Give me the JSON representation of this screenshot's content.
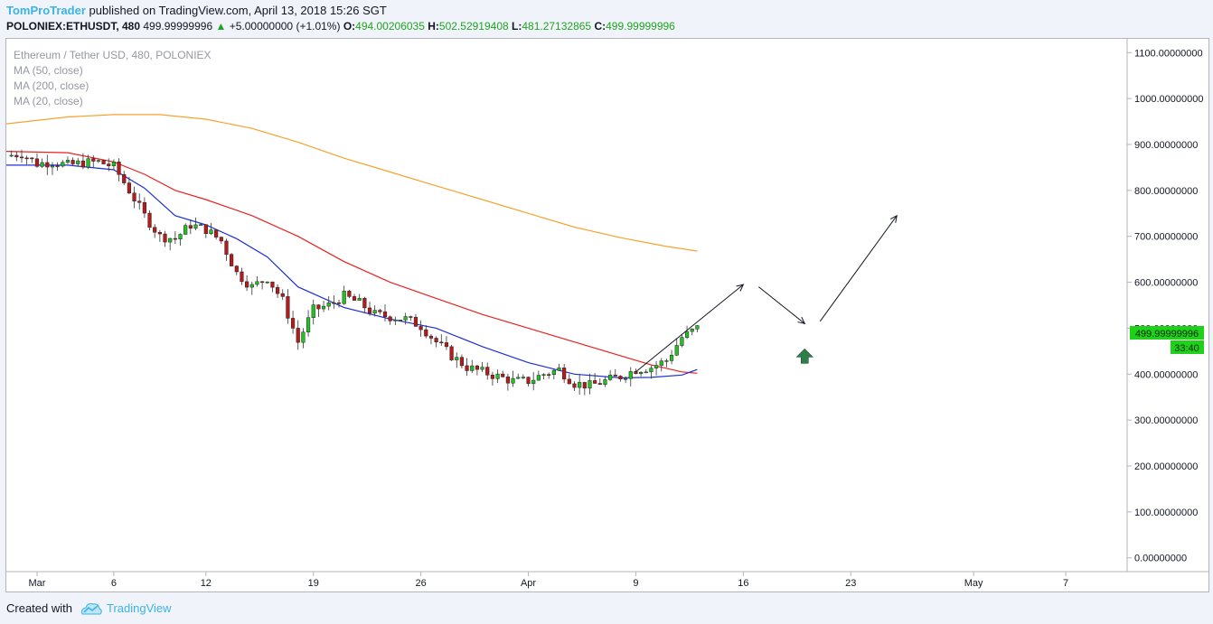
{
  "header": {
    "author": "TomProTrader",
    "published_text": "published on TradingView.com, April 13, 2018 15:26 SGT",
    "symbol": "POLONIEX:ETHUSDT, 480",
    "last_value": "499.99999996",
    "change_arrow": "▲",
    "change": "+5.00000000 (+1.01%)",
    "o_label": "O:",
    "o_value": "494.00206035",
    "h_label": "H:",
    "h_value": "502.52919408",
    "l_label": "L:",
    "l_value": "481.27132865",
    "c_label": "C:",
    "c_value": "499.99999996"
  },
  "legend": {
    "title": "Ethereum / Tether USD, 480, POLONIEX",
    "ma50": "MA (50, close)",
    "ma200": "MA (200, close)",
    "ma20": "MA (20, close)"
  },
  "price_label": {
    "value": "499.99999996",
    "countdown": "33:40"
  },
  "footer": {
    "created_with": "Created with",
    "brand": "TradingView"
  },
  "colors": {
    "up": "#21c321",
    "down": "#b61a1a",
    "ma50": "#e8221f",
    "ma200": "#f7a22e",
    "ma20": "#1d2fd8",
    "accent": "#3bb3e4",
    "arrow": "#2e7d4a",
    "label_bg": "#1fd119"
  },
  "chart_data": {
    "type": "candlestick",
    "yaxis": {
      "range": [
        -30,
        1130
      ],
      "ticks": [
        "0.00000000",
        "100.00000000",
        "200.00000000",
        "300.00000000",
        "400.00000000",
        "500.00000000",
        "600.00000000",
        "700.00000000",
        "800.00000000",
        "900.00000000",
        "1000.00000000",
        "1100.00000000"
      ]
    },
    "xaxis": {
      "range": [
        "2018-02-27",
        "2018-05-11"
      ],
      "ticks": [
        {
          "label": "Mar",
          "date": "2018-03-01"
        },
        {
          "label": "6",
          "date": "2018-03-06"
        },
        {
          "label": "12",
          "date": "2018-03-12"
        },
        {
          "label": "19",
          "date": "2018-03-19"
        },
        {
          "label": "26",
          "date": "2018-03-26"
        },
        {
          "label": "Apr",
          "date": "2018-04-02"
        },
        {
          "label": "9",
          "date": "2018-04-09"
        },
        {
          "label": "16",
          "date": "2018-04-16"
        },
        {
          "label": "23",
          "date": "2018-04-23"
        },
        {
          "label": "May",
          "date": "2018-05-01"
        },
        {
          "label": "7",
          "date": "2018-05-07"
        }
      ]
    },
    "series_close_daily": {
      "dates": [
        "2018-02-27",
        "2018-02-28",
        "2018-03-01",
        "2018-03-02",
        "2018-03-03",
        "2018-03-04",
        "2018-03-05",
        "2018-03-06",
        "2018-03-07",
        "2018-03-08",
        "2018-03-09",
        "2018-03-10",
        "2018-03-11",
        "2018-03-12",
        "2018-03-13",
        "2018-03-14",
        "2018-03-15",
        "2018-03-16",
        "2018-03-17",
        "2018-03-18",
        "2018-03-19",
        "2018-03-20",
        "2018-03-21",
        "2018-03-22",
        "2018-03-23",
        "2018-03-24",
        "2018-03-25",
        "2018-03-26",
        "2018-03-27",
        "2018-03-28",
        "2018-03-29",
        "2018-03-30",
        "2018-03-31",
        "2018-04-01",
        "2018-04-02",
        "2018-04-03",
        "2018-04-04",
        "2018-04-05",
        "2018-04-06",
        "2018-04-07",
        "2018-04-08",
        "2018-04-09",
        "2018-04-10",
        "2018-04-11",
        "2018-04-12",
        "2018-04-13"
      ],
      "values": [
        875,
        880,
        858,
        862,
        855,
        860,
        862,
        852,
        800,
        745,
        700,
        695,
        725,
        715,
        690,
        620,
        590,
        610,
        560,
        470,
        540,
        550,
        570,
        555,
        530,
        525,
        520,
        505,
        470,
        440,
        415,
        405,
        395,
        385,
        385,
        400,
        410,
        380,
        375,
        385,
        395,
        410,
        415,
        430,
        480,
        500
      ]
    },
    "ma50": {
      "dates": [
        "2018-02-27",
        "2018-03-03",
        "2018-03-06",
        "2018-03-08",
        "2018-03-10",
        "2018-03-12",
        "2018-03-15",
        "2018-03-18",
        "2018-03-21",
        "2018-03-24",
        "2018-03-27",
        "2018-03-30",
        "2018-04-02",
        "2018-04-05",
        "2018-04-08",
        "2018-04-10",
        "2018-04-12",
        "2018-04-13"
      ],
      "values": [
        885,
        882,
        862,
        835,
        800,
        780,
        745,
        700,
        645,
        600,
        565,
        530,
        500,
        470,
        440,
        420,
        405,
        402
      ]
    },
    "ma200": {
      "dates": [
        "2018-02-27",
        "2018-03-03",
        "2018-03-06",
        "2018-03-09",
        "2018-03-12",
        "2018-03-15",
        "2018-03-18",
        "2018-03-21",
        "2018-03-24",
        "2018-03-27",
        "2018-03-30",
        "2018-04-02",
        "2018-04-05",
        "2018-04-08",
        "2018-04-11",
        "2018-04-13"
      ],
      "values": [
        945,
        960,
        965,
        965,
        955,
        935,
        905,
        870,
        840,
        810,
        780,
        750,
        720,
        697,
        678,
        668
      ]
    },
    "ma20": {
      "dates": [
        "2018-02-27",
        "2018-03-03",
        "2018-03-06",
        "2018-03-08",
        "2018-03-10",
        "2018-03-12",
        "2018-03-14",
        "2018-03-16",
        "2018-03-18",
        "2018-03-21",
        "2018-03-24",
        "2018-03-27",
        "2018-03-30",
        "2018-04-02",
        "2018-04-05",
        "2018-04-08",
        "2018-04-10",
        "2018-04-12",
        "2018-04-13"
      ],
      "values": [
        855,
        855,
        845,
        805,
        745,
        725,
        695,
        655,
        590,
        545,
        520,
        500,
        460,
        425,
        400,
        392,
        393,
        398,
        410
      ]
    },
    "projection_arrows": [
      {
        "from": [
          "2018-04-09",
          405
        ],
        "to": [
          "2018-04-16",
          595
        ]
      },
      {
        "from": [
          "2018-04-17",
          590
        ],
        "to": [
          "2018-04-20",
          510
        ]
      },
      {
        "from": [
          "2018-04-21",
          515
        ],
        "to": [
          "2018-04-26",
          745
        ]
      }
    ],
    "up_marker": {
      "date": "2018-04-20",
      "value": 455
    }
  }
}
